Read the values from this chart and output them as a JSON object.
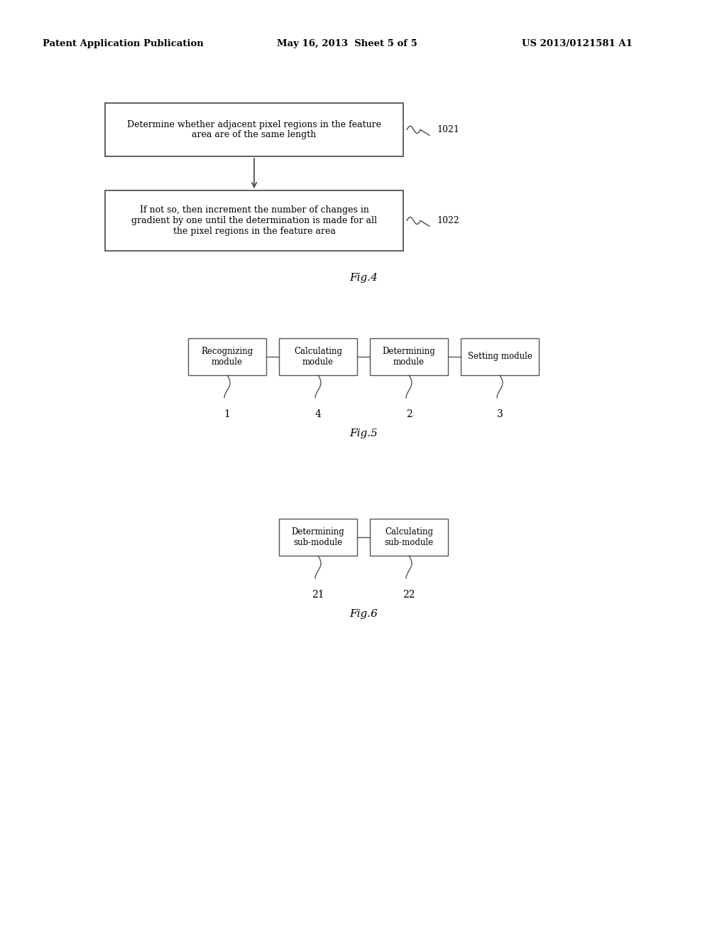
{
  "bg_color": "#ffffff",
  "header_left": "Patent Application Publication",
  "header_mid": "May 16, 2013  Sheet 5 of 5",
  "header_right": "US 2013/0121581 A1",
  "fig4": {
    "box1_text": "Determine whether adjacent pixel regions in the feature\narea are of the same length",
    "box1_label": "1021",
    "box2_text": "If not so, then increment the number of changes in\ngradient by one until the determination is made for all\nthe pixel regions in the feature area",
    "box2_label": "1022",
    "caption": "Fig.4"
  },
  "fig5": {
    "modules": [
      "Recognizing\nmodule",
      "Calculating\nmodule",
      "Determining\nmodule",
      "Setting module"
    ],
    "labels": [
      "1",
      "4",
      "2",
      "3"
    ],
    "caption": "Fig.5"
  },
  "fig6": {
    "modules": [
      "Determining\nsub-module",
      "Calculating\nsub-module"
    ],
    "labels": [
      "21",
      "22"
    ],
    "caption": "Fig.6"
  }
}
